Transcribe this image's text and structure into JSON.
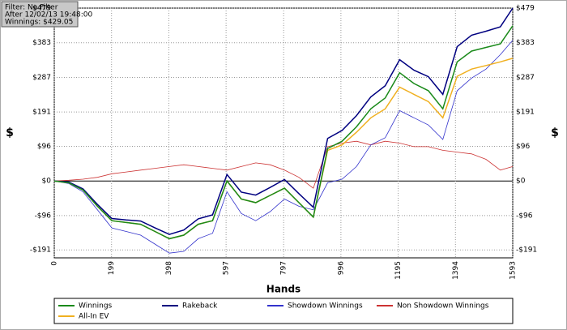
{
  "info": {
    "filter": "Filter: No Filter",
    "after": "After 12/02/13 19:48:00",
    "winnings": "Winnings: $429.05"
  },
  "chart_data": {
    "type": "line",
    "xlabel": "Hands",
    "ylabel": "$",
    "y2label": "$",
    "xlim": [
      0,
      1593
    ],
    "xticks": [
      0,
      199,
      398,
      597,
      797,
      996,
      1195,
      1394,
      1593
    ],
    "ylim": [
      -213,
      479
    ],
    "yticks": [
      {
        "value": -191,
        "label": "-$191"
      },
      {
        "value": -96,
        "label": "-$96"
      },
      {
        "value": 0,
        "label": "$0"
      },
      {
        "value": 96,
        "label": "$96"
      },
      {
        "value": 191,
        "label": "$191"
      },
      {
        "value": 287,
        "label": "$287"
      },
      {
        "value": 383,
        "label": "$383"
      },
      {
        "value": 479,
        "label": "$479"
      }
    ],
    "grid": true,
    "x": [
      0,
      50,
      100,
      150,
      200,
      250,
      300,
      350,
      400,
      450,
      500,
      550,
      600,
      650,
      700,
      750,
      800,
      850,
      900,
      950,
      1000,
      1050,
      1100,
      1150,
      1200,
      1250,
      1300,
      1350,
      1400,
      1450,
      1500,
      1550,
      1593
    ],
    "series": [
      {
        "name": "Winnings",
        "color": "#1a8a1a",
        "values": [
          0,
          -5,
          -25,
          -70,
          -110,
          -115,
          -120,
          -140,
          -160,
          -150,
          -120,
          -110,
          0,
          -50,
          -60,
          -40,
          -20,
          -60,
          -100,
          90,
          110,
          150,
          200,
          230,
          300,
          270,
          250,
          200,
          330,
          360,
          370,
          380,
          430
        ]
      },
      {
        "name": "Rakeback",
        "color": "#000080",
        "values": [
          0,
          -3,
          -22,
          -65,
          -104,
          -108,
          -111,
          -130,
          -148,
          -136,
          -105,
          -94,
          18,
          -31,
          -39,
          -18,
          4,
          -35,
          -73,
          118,
          140,
          181,
          233,
          264,
          336,
          307,
          289,
          240,
          372,
          404,
          415,
          427,
          479
        ]
      },
      {
        "name": "Showdown Winnings",
        "color": "#3333cc",
        "values": [
          0,
          -7,
          -30,
          -80,
          -130,
          -140,
          -150,
          -175,
          -200,
          -195,
          -160,
          -145,
          -30,
          -90,
          -110,
          -85,
          -50,
          -70,
          -80,
          -5,
          5,
          40,
          100,
          120,
          195,
          175,
          155,
          115,
          250,
          285,
          310,
          350,
          390
        ]
      },
      {
        "name": "Non Showdown Winnings",
        "color": "#cc3333",
        "values": [
          0,
          2,
          5,
          10,
          20,
          25,
          30,
          35,
          40,
          45,
          40,
          35,
          30,
          40,
          50,
          45,
          30,
          10,
          -20,
          95,
          105,
          110,
          100,
          110,
          105,
          95,
          95,
          85,
          80,
          75,
          60,
          30,
          40
        ]
      },
      {
        "name": "All-In EV",
        "color": "#f0b020",
        "values": [
          0,
          -5,
          -25,
          -70,
          -110,
          -115,
          -120,
          -140,
          -160,
          -150,
          -120,
          -110,
          0,
          -50,
          -60,
          -40,
          -20,
          -60,
          -100,
          85,
          100,
          135,
          175,
          200,
          260,
          240,
          220,
          175,
          290,
          310,
          320,
          330,
          340
        ]
      }
    ]
  }
}
